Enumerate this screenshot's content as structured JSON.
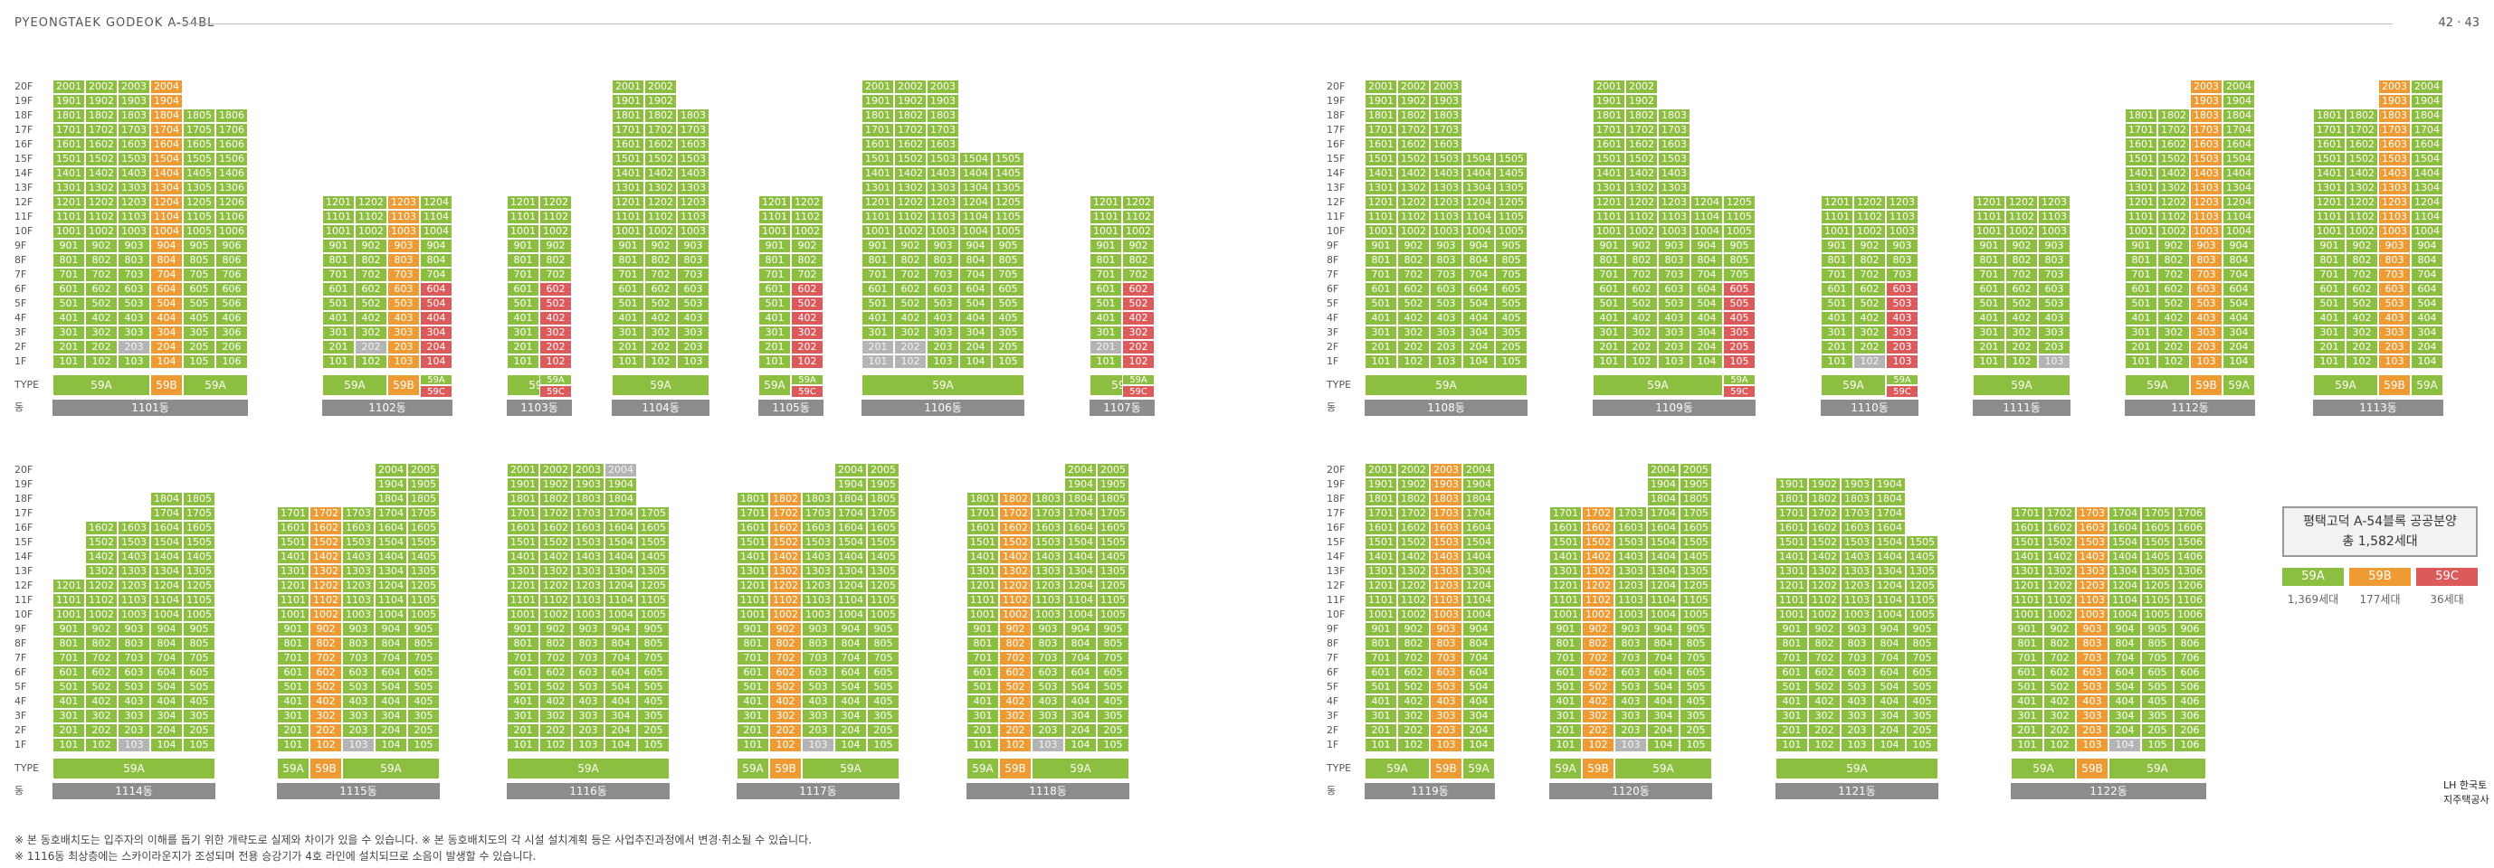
{
  "header": {
    "left": "PYEONGTAEK GODEOK A-54BL",
    "right": "42 · 43"
  },
  "colors": {
    "59A": "#8cbf3f",
    "59B": "#ef9b34",
    "59C": "#dc5a5a",
    "blank": "#b4b4b4",
    "dong_bar": "#8c8c8c"
  },
  "type_label": "TYPE",
  "dong_label": "동",
  "legend": {
    "title": "평택고덕 A-54블록 공공분양",
    "total": "총 1,582세대",
    "items": [
      {
        "type": "59A",
        "count": "1,369세대"
      },
      {
        "type": "59B",
        "count": "177세대"
      },
      {
        "type": "59C",
        "count": "36세대"
      }
    ]
  },
  "notes": [
    "※ 본 동호배치도는 입주자의 이해를 돕기 위한 개략도로 실제와 차이가 있을 수 있습니다.   ※ 본 동호배치도의 각 시설 설치계획 등은 사업추진과정에서 변경·취소될 수 있습니다.",
    "※ 1116동 최상층에는 스카이라운지가 조성되며 전용 승강기가 4호 라인에 설치되므로 소음이 발생할 수 있습니다."
  ],
  "logo_text": "LH 한국토지주택공사",
  "buildings": [
    {
      "dong": "1101동",
      "max": 20,
      "min": 1,
      "cols": [
        {
          "f": [
            1,
            20
          ],
          "t": "A"
        },
        {
          "f": [
            1,
            20
          ],
          "t": "A"
        },
        {
          "f": [
            1,
            20
          ],
          "t": "A",
          "g": [
            2
          ]
        },
        {
          "f": [
            1,
            20
          ],
          "t": "B",
          "b": [
            2,
            3,
            4,
            5
          ]
        },
        {
          "f": [
            1,
            18
          ],
          "t": "A"
        },
        {
          "f": [
            1,
            18
          ],
          "t": "A"
        }
      ],
      "types": [
        [
          "59A",
          3
        ],
        [
          "59B",
          1
        ],
        [
          "59A",
          2
        ]
      ]
    },
    {
      "dong": "1102동",
      "max": 12,
      "min": 1,
      "cols": [
        {
          "f": [
            1,
            12
          ],
          "t": "A"
        },
        {
          "f": [
            1,
            12
          ],
          "t": "A",
          "g": [
            2
          ]
        },
        {
          "f": [
            1,
            12
          ],
          "t": "B"
        },
        {
          "f": [
            1,
            12
          ],
          "t": "A",
          "r": [
            1,
            2,
            3,
            4,
            5,
            6
          ]
        }
      ],
      "types": [
        [
          "59A",
          2
        ],
        [
          "59B",
          1
        ],
        [
          "59A|59C",
          1
        ]
      ]
    },
    {
      "dong": "1103동",
      "max": 12,
      "min": 1,
      "cols": [
        {
          "f": [
            1,
            12
          ],
          "t": "A"
        },
        {
          "f": [
            1,
            12
          ],
          "t": "A",
          "r": [
            1,
            2,
            3,
            4,
            5,
            6
          ]
        }
      ],
      "types": [
        [
          "59A|59C",
          2
        ]
      ]
    },
    {
      "dong": "1104동",
      "max": 20,
      "min": 1,
      "cols": [
        {
          "f": [
            1,
            20
          ],
          "t": "A"
        },
        {
          "f": [
            1,
            20
          ],
          "t": "A"
        },
        {
          "f": [
            1,
            18
          ],
          "t": "A"
        }
      ],
      "types": [
        [
          "59A",
          3
        ]
      ]
    },
    {
      "dong": "1105동",
      "max": 12,
      "min": 1,
      "cols": [
        {
          "f": [
            1,
            12
          ],
          "t": "A"
        },
        {
          "f": [
            1,
            12
          ],
          "t": "A",
          "r": [
            1,
            2,
            3,
            4,
            5,
            6
          ]
        }
      ],
      "types": [
        [
          "59A",
          1
        ],
        [
          "59A|59C",
          1
        ]
      ]
    },
    {
      "dong": "1106동",
      "max": 20,
      "min": 1,
      "cols": [
        {
          "f": [
            1,
            20
          ],
          "t": "A",
          "g": [
            1,
            2
          ]
        },
        {
          "f": [
            1,
            20
          ],
          "t": "A",
          "g": [
            1,
            2
          ]
        },
        {
          "f": [
            1,
            20
          ],
          "t": "A"
        },
        {
          "f": [
            1,
            15
          ],
          "t": "A"
        },
        {
          "f": [
            1,
            15
          ],
          "t": "A"
        }
      ],
      "types": [
        [
          "59A",
          5
        ]
      ]
    },
    {
      "dong": "1107동",
      "max": 12,
      "min": 1,
      "cols": [
        {
          "f": [
            1,
            12
          ],
          "t": "A",
          "g": [
            2
          ]
        },
        {
          "f": [
            1,
            12
          ],
          "t": "A",
          "r": [
            1,
            2,
            3,
            4,
            5,
            6
          ]
        }
      ],
      "types": [
        [
          "59A|59C",
          2
        ]
      ]
    },
    {
      "dong": "1108동",
      "max": 20,
      "min": 1,
      "cols": [
        {
          "f": [
            1,
            20
          ],
          "t": "A"
        },
        {
          "f": [
            1,
            20
          ],
          "t": "A"
        },
        {
          "f": [
            1,
            20
          ],
          "t": "A"
        },
        {
          "f": [
            1,
            15
          ],
          "t": "A"
        },
        {
          "f": [
            1,
            15
          ],
          "t": "A"
        }
      ],
      "types": [
        [
          "59A",
          5
        ]
      ]
    },
    {
      "dong": "1109동",
      "max": 20,
      "min": 1,
      "cols": [
        {
          "f": [
            1,
            20
          ],
          "t": "A"
        },
        {
          "f": [
            1,
            20
          ],
          "t": "A"
        },
        {
          "f": [
            1,
            18
          ],
          "t": "A"
        },
        {
          "f": [
            1,
            12
          ],
          "t": "A"
        },
        {
          "f": [
            1,
            12
          ],
          "t": "A",
          "r": [
            1,
            2,
            3,
            4,
            5,
            6
          ]
        }
      ],
      "types": [
        [
          "59A",
          4
        ],
        [
          "59A|59C",
          1
        ]
      ]
    },
    {
      "dong": "1110동",
      "max": 12,
      "min": 1,
      "cols": [
        {
          "f": [
            1,
            12
          ],
          "t": "A"
        },
        {
          "f": [
            1,
            12
          ],
          "t": "A",
          "g": [
            1
          ]
        },
        {
          "f": [
            1,
            12
          ],
          "t": "A",
          "r": [
            1,
            2,
            3,
            4,
            5,
            6
          ]
        }
      ],
      "types": [
        [
          "59A",
          2
        ],
        [
          "59A|59C",
          1
        ]
      ]
    },
    {
      "dong": "1111동",
      "max": 12,
      "min": 1,
      "cols": [
        {
          "f": [
            1,
            12
          ],
          "t": "A"
        },
        {
          "f": [
            1,
            12
          ],
          "t": "A"
        },
        {
          "f": [
            1,
            12
          ],
          "t": "A",
          "g": [
            1
          ]
        }
      ],
      "types": [
        [
          "59A",
          3
        ]
      ]
    },
    {
      "dong": "1112동",
      "max": 20,
      "min": 1,
      "cols": [
        {
          "f": [
            1,
            18
          ],
          "t": "A"
        },
        {
          "f": [
            1,
            18
          ],
          "t": "A"
        },
        {
          "f": [
            1,
            20
          ],
          "t": "B"
        },
        {
          "f": [
            1,
            20
          ],
          "t": "A"
        }
      ],
      "types": [
        [
          "59A",
          2
        ],
        [
          "59B",
          1
        ],
        [
          "59A",
          1
        ]
      ]
    },
    {
      "dong": "1113동",
      "max": 20,
      "min": 1,
      "cols": [
        {
          "f": [
            1,
            18
          ],
          "t": "A"
        },
        {
          "f": [
            1,
            18
          ],
          "t": "A"
        },
        {
          "f": [
            1,
            20
          ],
          "t": "B"
        },
        {
          "f": [
            1,
            20
          ],
          "t": "A"
        }
      ],
      "types": [
        [
          "59A",
          2
        ],
        [
          "59B",
          1
        ],
        [
          "59A",
          1
        ]
      ]
    },
    {
      "dong": "1114동",
      "max": 18,
      "min": 1,
      "cols": [
        {
          "f": [
            1,
            12
          ],
          "t": "A"
        },
        {
          "f": [
            1,
            16
          ],
          "t": "A"
        },
        {
          "f": [
            1,
            16
          ],
          "t": "A",
          "g": [
            1
          ]
        },
        {
          "f": [
            1,
            18
          ],
          "t": "A"
        },
        {
          "f": [
            1,
            18
          ],
          "t": "A"
        }
      ],
      "types": [
        [
          "59A",
          5
        ]
      ]
    },
    {
      "dong": "1115동",
      "max": 20,
      "min": 1,
      "cols": [
        {
          "f": [
            1,
            17
          ],
          "t": "A"
        },
        {
          "f": [
            1,
            17
          ],
          "t": "B"
        },
        {
          "f": [
            1,
            17
          ],
          "t": "A",
          "g": [
            1
          ]
        },
        {
          "f": [
            1,
            20
          ],
          "t": "A"
        },
        {
          "f": [
            1,
            20
          ],
          "t": "A"
        }
      ],
      "types": [
        [
          "59A",
          1
        ],
        [
          "59B",
          1
        ],
        [
          "59A",
          3
        ]
      ]
    },
    {
      "dong": "1116동",
      "max": 20,
      "min": 1,
      "cols": [
        {
          "f": [
            1,
            20
          ],
          "t": "A"
        },
        {
          "f": [
            1,
            20
          ],
          "t": "A"
        },
        {
          "f": [
            1,
            20
          ],
          "t": "A"
        },
        {
          "f": [
            1,
            20
          ],
          "t": "A",
          "g": [
            20
          ]
        },
        {
          "f": [
            1,
            17
          ],
          "t": "A"
        }
      ],
      "types": [
        [
          "59A",
          5
        ]
      ]
    },
    {
      "dong": "1117동",
      "max": 20,
      "min": 1,
      "cols": [
        {
          "f": [
            1,
            18
          ],
          "t": "A"
        },
        {
          "f": [
            1,
            18
          ],
          "t": "B"
        },
        {
          "f": [
            1,
            18
          ],
          "t": "A",
          "g": [
            1
          ]
        },
        {
          "f": [
            1,
            20
          ],
          "t": "A"
        },
        {
          "f": [
            1,
            20
          ],
          "t": "A"
        }
      ],
      "types": [
        [
          "59A",
          1
        ],
        [
          "59B",
          1
        ],
        [
          "59A",
          3
        ]
      ]
    },
    {
      "dong": "1118동",
      "max": 20,
      "min": 1,
      "cols": [
        {
          "f": [
            1,
            18
          ],
          "t": "A"
        },
        {
          "f": [
            1,
            18
          ],
          "t": "B"
        },
        {
          "f": [
            1,
            18
          ],
          "t": "A",
          "g": [
            1
          ]
        },
        {
          "f": [
            1,
            20
          ],
          "t": "A"
        },
        {
          "f": [
            1,
            20
          ],
          "t": "A"
        }
      ],
      "types": [
        [
          "59A",
          1
        ],
        [
          "59B",
          1
        ],
        [
          "59A",
          3
        ]
      ]
    },
    {
      "dong": "1119동",
      "max": 20,
      "min": 1,
      "cols": [
        {
          "f": [
            1,
            20
          ],
          "t": "A"
        },
        {
          "f": [
            1,
            20
          ],
          "t": "A"
        },
        {
          "f": [
            1,
            20
          ],
          "t": "B"
        },
        {
          "f": [
            1,
            20
          ],
          "t": "A"
        }
      ],
      "types": [
        [
          "59A",
          2
        ],
        [
          "59B",
          1
        ],
        [
          "59A",
          1
        ]
      ]
    },
    {
      "dong": "1120동",
      "max": 20,
      "min": 1,
      "cols": [
        {
          "f": [
            1,
            17
          ],
          "t": "A"
        },
        {
          "f": [
            1,
            17
          ],
          "t": "B"
        },
        {
          "f": [
            1,
            17
          ],
          "t": "A",
          "g": [
            1
          ]
        },
        {
          "f": [
            1,
            20
          ],
          "t": "A"
        },
        {
          "f": [
            1,
            20
          ],
          "t": "A"
        }
      ],
      "types": [
        [
          "59A",
          1
        ],
        [
          "59B",
          1
        ],
        [
          "59A",
          3
        ]
      ]
    },
    {
      "dong": "1121동",
      "max": 19,
      "min": 1,
      "cols": [
        {
          "f": [
            1,
            19
          ],
          "t": "A"
        },
        {
          "f": [
            1,
            19
          ],
          "t": "A"
        },
        {
          "f": [
            1,
            19
          ],
          "t": "A"
        },
        {
          "f": [
            1,
            19
          ],
          "t": "A"
        },
        {
          "f": [
            1,
            15
          ],
          "t": "A"
        }
      ],
      "types": [
        [
          "59A",
          5
        ]
      ]
    },
    {
      "dong": "1122동",
      "max": 17,
      "min": 1,
      "cols": [
        {
          "f": [
            1,
            17
          ],
          "t": "A"
        },
        {
          "f": [
            1,
            17
          ],
          "t": "A"
        },
        {
          "f": [
            1,
            17
          ],
          "t": "B"
        },
        {
          "f": [
            1,
            17
          ],
          "t": "A",
          "g": [
            1
          ]
        },
        {
          "f": [
            1,
            17
          ],
          "t": "A"
        },
        {
          "f": [
            1,
            17
          ],
          "t": "A"
        }
      ],
      "types": [
        [
          "59A",
          2
        ],
        [
          "59B",
          1
        ],
        [
          "59A",
          3
        ]
      ]
    }
  ]
}
